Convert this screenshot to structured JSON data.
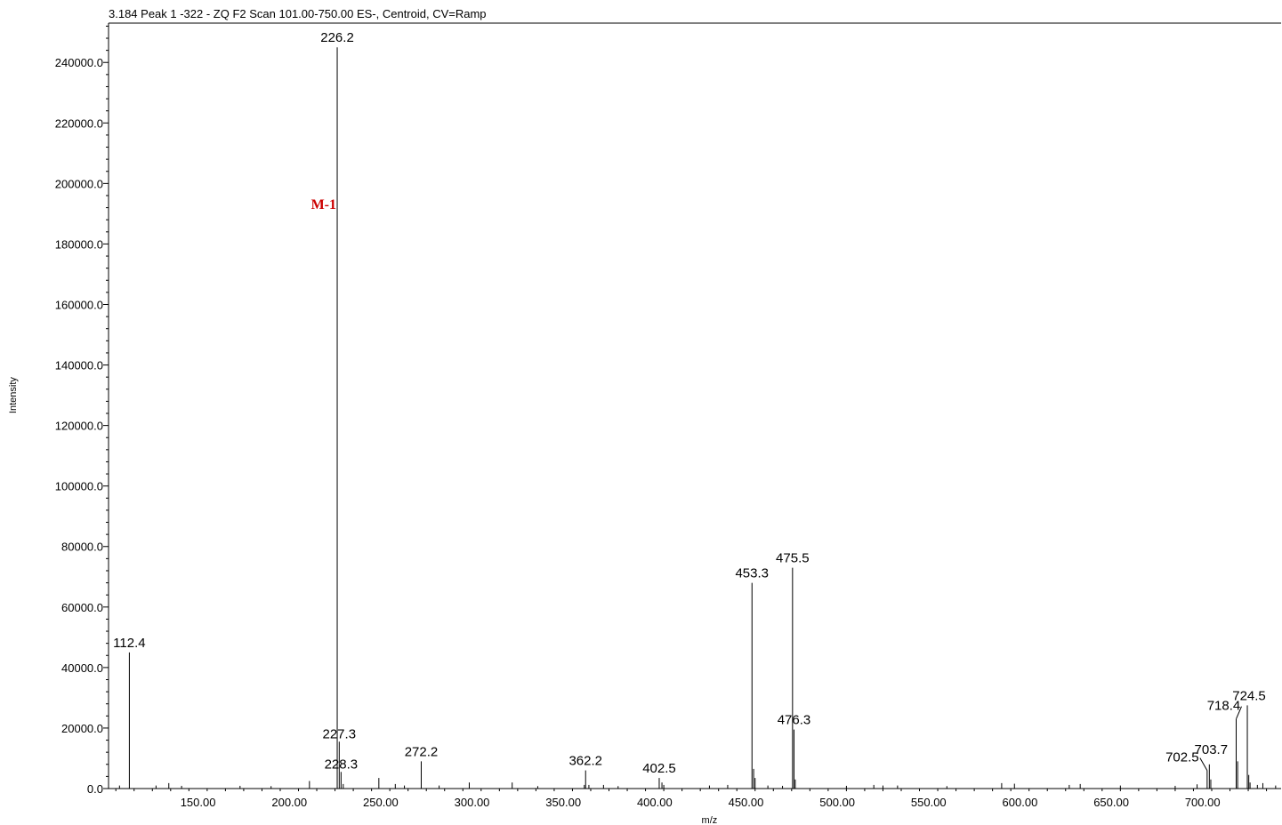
{
  "chart_data": {
    "type": "bar",
    "title": "3.184 Peak 1 -322 - ZQ F2 Scan 101.00-750.00 ES-, Centroid, CV=Ramp",
    "xlabel": "m/z",
    "ylabel": "Intensity",
    "xlim": [
      101,
      743
    ],
    "ylim": [
      0,
      253000
    ],
    "x_ticks": [
      150,
      200,
      250,
      300,
      350,
      400,
      450,
      500,
      550,
      600,
      650,
      700
    ],
    "x_tick_labels": [
      "150.00",
      "200.00",
      "250.00",
      "300.00",
      "350.00",
      "400.00",
      "450.00",
      "500.00",
      "550.00",
      "600.00",
      "650.00",
      "700.00"
    ],
    "y_ticks": [
      0,
      20000,
      40000,
      60000,
      80000,
      100000,
      120000,
      140000,
      160000,
      180000,
      200000,
      220000,
      240000
    ],
    "y_tick_labels": [
      "0.0",
      "20000.0",
      "40000.0",
      "60000.0",
      "80000.0",
      "100000.0",
      "120000.0",
      "140000.0",
      "160000.0",
      "180000.0",
      "200000.0",
      "220000.0",
      "240000.0"
    ],
    "peaks": [
      {
        "mz": 112.4,
        "intensity": 45000,
        "label": "112.4"
      },
      {
        "mz": 226.2,
        "intensity": 245000,
        "label": "226.2"
      },
      {
        "mz": 227.3,
        "intensity": 15500,
        "label": "227.3"
      },
      {
        "mz": 228.3,
        "intensity": 5500,
        "label": "228.3"
      },
      {
        "mz": 272.2,
        "intensity": 9000,
        "label": "272.2"
      },
      {
        "mz": 362.2,
        "intensity": 6000,
        "label": "362.2"
      },
      {
        "mz": 402.5,
        "intensity": 3500,
        "label": "402.5"
      },
      {
        "mz": 453.3,
        "intensity": 68000,
        "label": "453.3"
      },
      {
        "mz": 475.5,
        "intensity": 73000,
        "label": "475.5"
      },
      {
        "mz": 476.3,
        "intensity": 19500,
        "label": "476.3"
      },
      {
        "mz": 702.5,
        "intensity": 6000,
        "label": "702.5"
      },
      {
        "mz": 703.7,
        "intensity": 8000,
        "label": "703.7"
      },
      {
        "mz": 718.4,
        "intensity": 23000,
        "label": "718.4"
      },
      {
        "mz": 724.5,
        "intensity": 27500,
        "label": "724.5"
      },
      {
        "mz": 454.2,
        "intensity": 6500
      },
      {
        "mz": 455.0,
        "intensity": 3500
      },
      {
        "mz": 477.0,
        "intensity": 3000
      },
      {
        "mz": 719.2,
        "intensity": 9000
      },
      {
        "mz": 725.3,
        "intensity": 4500
      },
      {
        "mz": 726.0,
        "intensity": 2000
      },
      {
        "mz": 704.5,
        "intensity": 3000
      },
      {
        "mz": 249.0,
        "intensity": 3500
      },
      {
        "mz": 211.0,
        "intensity": 2500
      },
      {
        "mz": 298.5,
        "intensity": 2000
      },
      {
        "mz": 322.0,
        "intensity": 2000
      },
      {
        "mz": 361.5,
        "intensity": 1200
      },
      {
        "mz": 364.0,
        "intensity": 1200
      },
      {
        "mz": 404.0,
        "intensity": 2000
      },
      {
        "mz": 405.0,
        "intensity": 1200
      },
      {
        "mz": 258.0,
        "intensity": 1500
      },
      {
        "mz": 263.0,
        "intensity": 1000
      },
      {
        "mz": 229.5,
        "intensity": 1500
      },
      {
        "mz": 134.0,
        "intensity": 1800
      },
      {
        "mz": 107.0,
        "intensity": 1000
      },
      {
        "mz": 127.0,
        "intensity": 1000
      },
      {
        "mz": 141.0,
        "intensity": 900
      },
      {
        "mz": 173.0,
        "intensity": 900
      },
      {
        "mz": 190.0,
        "intensity": 800
      },
      {
        "mz": 282.0,
        "intensity": 1000
      },
      {
        "mz": 336.0,
        "intensity": 800
      },
      {
        "mz": 372.0,
        "intensity": 1200
      },
      {
        "mz": 380.0,
        "intensity": 800
      },
      {
        "mz": 430.0,
        "intensity": 1000
      },
      {
        "mz": 440.0,
        "intensity": 1200
      },
      {
        "mz": 462.0,
        "intensity": 1000
      },
      {
        "mz": 470.0,
        "intensity": 900
      },
      {
        "mz": 505.0,
        "intensity": 900
      },
      {
        "mz": 520.0,
        "intensity": 1200
      },
      {
        "mz": 525.0,
        "intensity": 1000
      },
      {
        "mz": 533.0,
        "intensity": 1000
      },
      {
        "mz": 560.0,
        "intensity": 800
      },
      {
        "mz": 590.0,
        "intensity": 1800
      },
      {
        "mz": 597.0,
        "intensity": 1600
      },
      {
        "mz": 627.0,
        "intensity": 1200
      },
      {
        "mz": 633.0,
        "intensity": 1500
      },
      {
        "mz": 655.0,
        "intensity": 1000
      },
      {
        "mz": 685.0,
        "intensity": 900
      },
      {
        "mz": 697.0,
        "intensity": 1400
      },
      {
        "mz": 730.0,
        "intensity": 1200
      },
      {
        "mz": 733.0,
        "intensity": 1800
      },
      {
        "mz": 740.0,
        "intensity": 1000
      }
    ],
    "annotations": [
      {
        "text": "M-1",
        "mz": 226.2,
        "intensity": 193000,
        "color": "#cc0000"
      }
    ]
  }
}
